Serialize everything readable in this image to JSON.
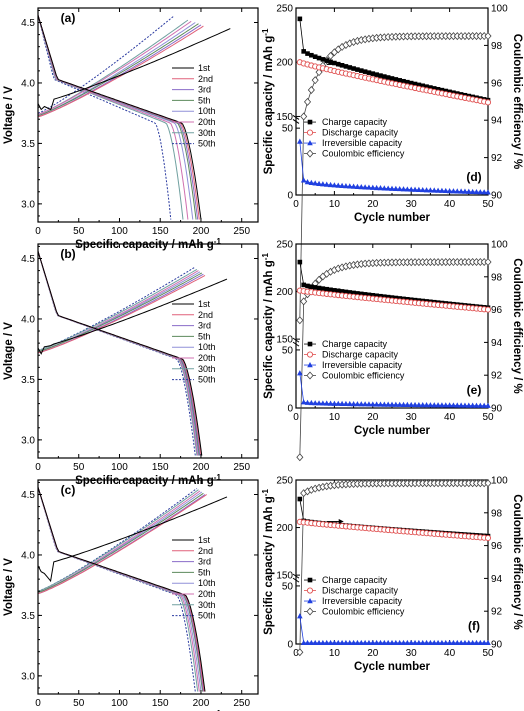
{
  "chart_data": [
    {
      "id": "a",
      "panel_label": "(a)",
      "type": "line",
      "xlabel": "Specific capacity / mAh g",
      "xlabel_sup": "-1",
      "ylabel": "Voltage / V",
      "xlim": [
        0,
        270
      ],
      "ylim": [
        2.85,
        4.62
      ],
      "xticks": [
        "0",
        "50",
        "100",
        "150",
        "200",
        "250"
      ],
      "yticks": [
        "3.0",
        "3.5",
        "4.0",
        "4.5"
      ],
      "legend": [
        "1st",
        "2nd",
        "3rd",
        "5th",
        "10th",
        "20th",
        "30th",
        "50th"
      ],
      "colors": [
        "#000000",
        "#e0607a",
        "#8a6cc8",
        "#5c8a5c",
        "#9090d8",
        "#d070b0",
        "#70a0a0",
        "#2a3aa0"
      ],
      "charge_end": [
        236,
        203,
        200,
        197,
        193,
        188,
        184,
        166
      ],
      "discharge_end": [
        200,
        198,
        196,
        194,
        190,
        184,
        178,
        163
      ],
      "v_start": [
        3.83,
        3.72,
        3.72,
        3.73,
        3.73,
        3.74,
        3.74,
        3.75
      ],
      "v_top": [
        4.45,
        4.47,
        4.48,
        4.49,
        4.5,
        4.51,
        4.52,
        4.55
      ]
    },
    {
      "id": "b",
      "panel_label": "(b)",
      "type": "line",
      "xlabel": "Specific capacity / mAh g",
      "xlabel_sup": "-1",
      "ylabel": "Voltage / V",
      "xlim": [
        0,
        270
      ],
      "ylim": [
        2.85,
        4.62
      ],
      "xticks": [
        "0",
        "50",
        "100",
        "150",
        "200",
        "250"
      ],
      "yticks": [
        "3.0",
        "3.5",
        "4.0",
        "4.5"
      ],
      "legend": [
        "1st",
        "2nd",
        "3rd",
        "5th",
        "10th",
        "20th",
        "30th",
        "50th"
      ],
      "colors": [
        "#000000",
        "#e0607a",
        "#8a6cc8",
        "#5c8a5c",
        "#9090d8",
        "#d070b0",
        "#70a0a0",
        "#2a3aa0"
      ],
      "charge_end": [
        232,
        205,
        203,
        201,
        199,
        197,
        195,
        193
      ],
      "discharge_end": [
        201,
        200,
        199,
        198,
        197,
        196,
        195,
        193
      ],
      "v_start": [
        3.76,
        3.72,
        3.72,
        3.73,
        3.73,
        3.73,
        3.74,
        3.74
      ],
      "v_top": [
        4.33,
        4.36,
        4.37,
        4.38,
        4.39,
        4.4,
        4.41,
        4.43
      ]
    },
    {
      "id": "c",
      "panel_label": "(c)",
      "type": "line",
      "xlabel": "Specific capacity / mAh g",
      "xlabel_sup": "-1",
      "ylabel": "Voltage / V",
      "xlim": [
        0,
        270
      ],
      "ylim": [
        2.85,
        4.62
      ],
      "xticks": [
        "0",
        "50",
        "100",
        "150",
        "200",
        "250"
      ],
      "yticks": [
        "3.0",
        "3.5",
        "4.0",
        "4.5"
      ],
      "legend": [
        "1st",
        "2nd",
        "3rd",
        "5th",
        "10th",
        "20th",
        "30th",
        "50th"
      ],
      "colors": [
        "#000000",
        "#e0607a",
        "#8a6cc8",
        "#5c8a5c",
        "#9090d8",
        "#d070b0",
        "#70a0a0",
        "#2a3aa0"
      ],
      "charge_end": [
        232,
        207,
        205,
        203,
        201,
        199,
        197,
        195
      ],
      "discharge_end": [
        205,
        204,
        203,
        202,
        200,
        198,
        196,
        193
      ],
      "v_start": [
        3.91,
        3.68,
        3.68,
        3.69,
        3.69,
        3.69,
        3.7,
        3.7
      ],
      "v_top": [
        4.48,
        4.5,
        4.5,
        4.51,
        4.52,
        4.53,
        4.54,
        4.55
      ]
    },
    {
      "id": "d",
      "panel_label": "(d)",
      "type": "scatter",
      "xlabel": "Cycle number",
      "ylabel": "Specific capacity / mAh g",
      "ylabel_sup": "-1",
      "y2label": "Coulombic efficiency / %",
      "xlim": [
        0,
        50
      ],
      "xticks": [
        "0",
        "10",
        "20",
        "30",
        "40",
        "50"
      ],
      "yticks_top": [
        "150",
        "200",
        "250"
      ],
      "yticks_bottom": [
        "0",
        "50"
      ],
      "y2lim": [
        90,
        100
      ],
      "y2ticks": [
        "90",
        "92",
        "94",
        "96",
        "98",
        "100"
      ],
      "legend": [
        "Charge capacity",
        "Discharge capacity",
        "Irreversible capacity",
        "Coulombic efficiency"
      ],
      "charge_first": 240,
      "charge_c2": 210,
      "charge_end": 165,
      "discharge_first": 200,
      "discharge_end": 163,
      "irr_first": 40,
      "irr_c2": 11,
      "irr_end": 2,
      "ce_first": 83.3,
      "ce_c2": 94.2,
      "ce_plateau": 98.5
    },
    {
      "id": "e",
      "panel_label": "(e)",
      "type": "scatter",
      "xlabel": "Cycle number",
      "ylabel": "Specific capacity / mAh g",
      "ylabel_sup": "-1",
      "y2label": "Coulombic efficiency / %",
      "xlim": [
        0,
        50
      ],
      "xticks": [
        "0",
        "10",
        "20",
        "30",
        "40",
        "50"
      ],
      "yticks_top": [
        "150",
        "200",
        "250"
      ],
      "yticks_bottom": [
        "0",
        "50"
      ],
      "y2lim": [
        90,
        100
      ],
      "y2ticks": [
        "90",
        "92",
        "94",
        "96",
        "98",
        "100"
      ],
      "legend": [
        "Charge capacity",
        "Discharge capacity",
        "Irreversible capacity",
        "Coulombic efficiency"
      ],
      "charge_first": 231,
      "charge_c2": 207,
      "charge_end": 183,
      "discharge_first": 201,
      "discharge_end": 181,
      "irr_first": 30,
      "irr_c2": 5,
      "irr_end": 2,
      "ce_first": 87,
      "ce_c2": 96.5,
      "ce_plateau": 98.9
    },
    {
      "id": "f",
      "panel_label": "(f)",
      "type": "scatter",
      "xlabel": "Cycle number",
      "ylabel": "Specific capacity / mAh g",
      "ylabel_sup": "-1",
      "y2label": "Coulombic efficiency / %",
      "xlim": [
        0,
        50
      ],
      "xticks": [
        "0",
        "10",
        "20",
        "30",
        "40",
        "50"
      ],
      "yticks_top": [
        "150",
        "200",
        "250"
      ],
      "yticks_bottom": [
        "0",
        "50"
      ],
      "y2lim": [
        90,
        100
      ],
      "y2ticks": [
        "90",
        "92",
        "94",
        "96",
        "98",
        "100"
      ],
      "legend": [
        "Charge capacity",
        "Discharge capacity",
        "Irreversible capacity",
        "Coulombic efficiency"
      ],
      "charge_first": 230,
      "charge_c2": 207,
      "charge_end": 191,
      "discharge_first": 206,
      "discharge_end": 189,
      "irr_first": 24,
      "irr_c2": 1,
      "irr_end": 1,
      "ce_first": 89.5,
      "ce_c2": 99.2,
      "ce_plateau": 99.8
    }
  ]
}
